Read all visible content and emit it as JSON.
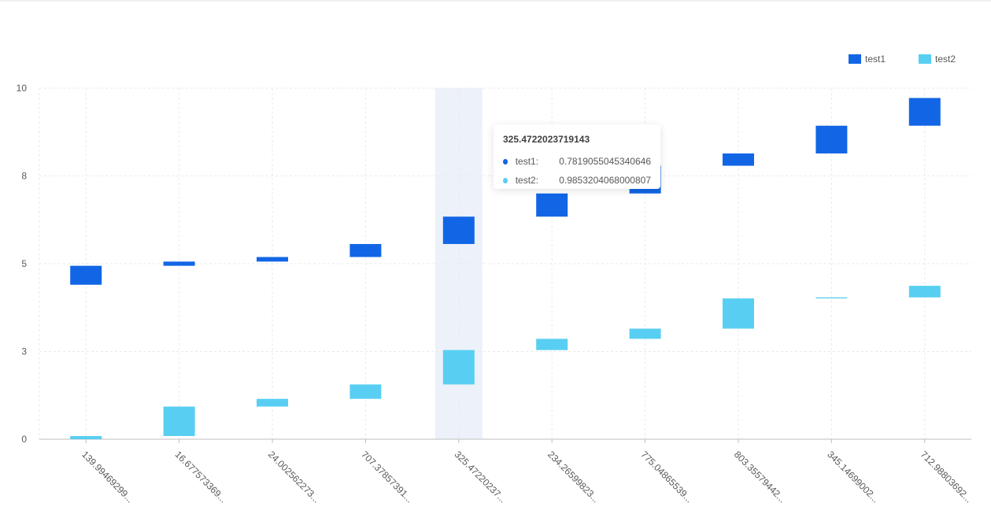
{
  "colors": {
    "test1": "#1266e6",
    "test2": "#58cff2",
    "grid": "#e8eaee",
    "highlight": "#edf1f9",
    "axis": "#bfbfbf",
    "label": "#595959"
  },
  "legend": {
    "items": [
      {
        "label": "test1"
      },
      {
        "label": "test2"
      }
    ]
  },
  "tooltip": {
    "title": "325.4722023719143",
    "rows": [
      {
        "name": "test1:",
        "value": "0.7819055045340646"
      },
      {
        "name": "test2:",
        "value": "0.9853204068000807"
      }
    ]
  },
  "chart_data": {
    "type": "bar",
    "subtype": "floating-bar",
    "categories": [
      "139.99469299...",
      "16.677573369...",
      "24.002562273...",
      "707.37857391...",
      "325.47220237...",
      "234.26599823...",
      "775.04865539...",
      "803.35579442...",
      "345.14699002...",
      "712.98803692..."
    ],
    "yticks": [
      "0",
      "3",
      "5",
      "8",
      "10"
    ],
    "ylim": [
      0,
      10
    ],
    "grid": true,
    "legend_position": "top-right",
    "highlighted_category": 4,
    "series": [
      {
        "name": "test1",
        "ranges": [
          [
            4.4,
            4.94
          ],
          [
            4.94,
            5.06
          ],
          [
            5.06,
            5.19
          ],
          [
            5.19,
            5.56
          ],
          [
            5.56,
            6.34
          ],
          [
            6.34,
            7.0
          ],
          [
            7.0,
            7.79
          ],
          [
            7.79,
            8.14
          ],
          [
            8.14,
            8.93
          ],
          [
            8.93,
            9.72
          ]
        ]
      },
      {
        "name": "test2",
        "ranges": [
          [
            0.0,
            0.09
          ],
          [
            0.09,
            0.93
          ],
          [
            0.93,
            1.15
          ],
          [
            1.15,
            1.56
          ],
          [
            1.56,
            2.54
          ],
          [
            2.54,
            2.86
          ],
          [
            2.86,
            3.15
          ],
          [
            3.15,
            4.01
          ],
          [
            4.01,
            4.04
          ],
          [
            4.04,
            4.37
          ]
        ]
      }
    ]
  }
}
